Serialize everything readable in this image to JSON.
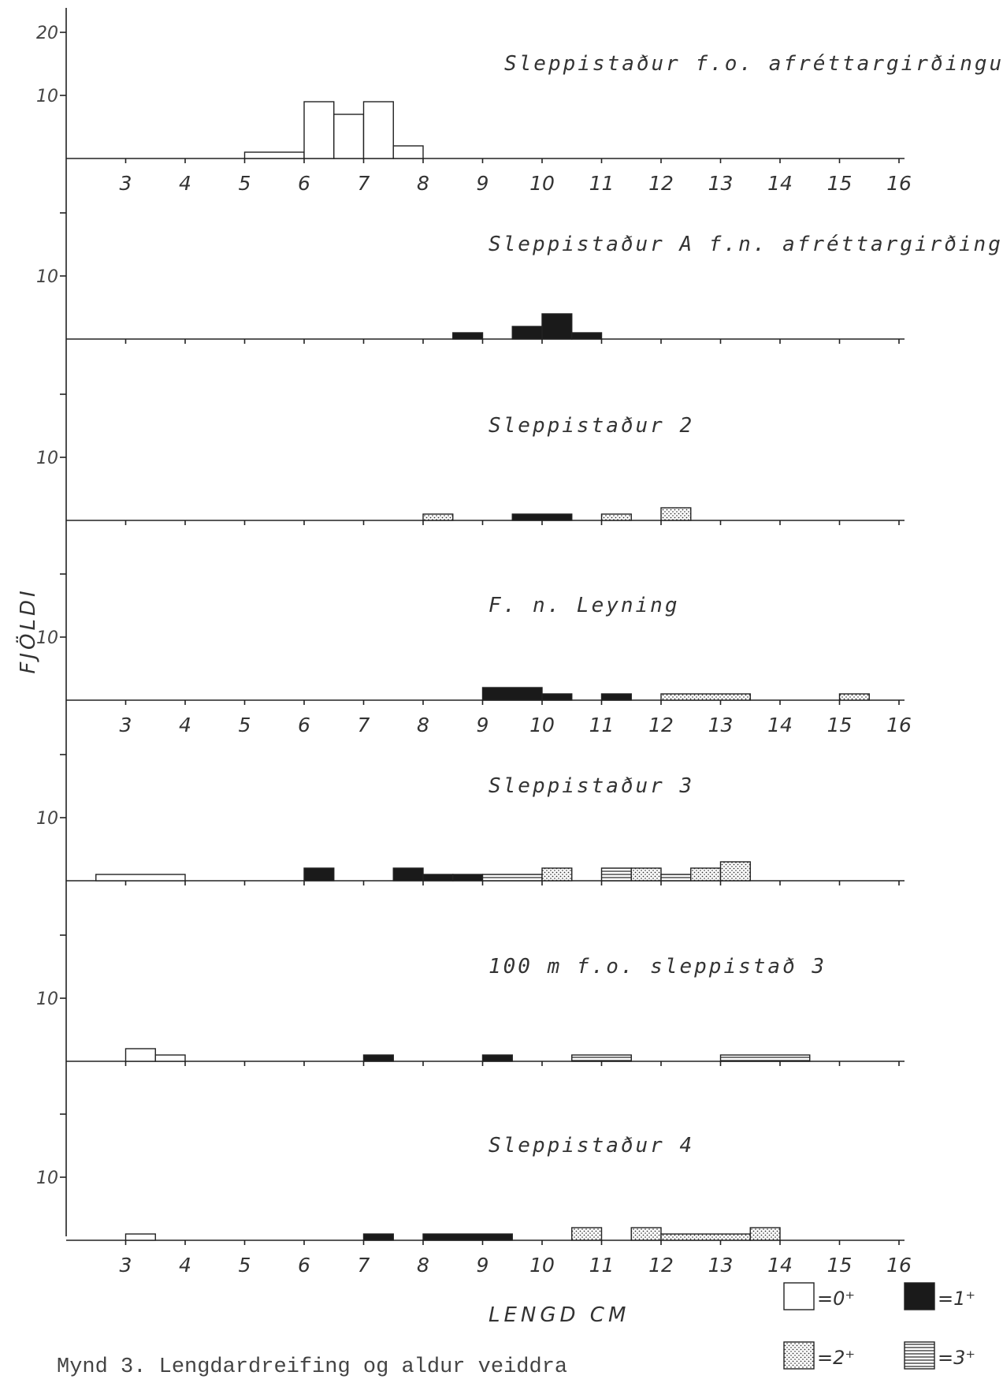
{
  "chart_data": {
    "type": "bar",
    "ylabel": "FJÖLDI",
    "xlabel": "LENGD CM",
    "x_ticks": [
      "3",
      "4",
      "5",
      "6",
      "7",
      "8",
      "9",
      "10",
      "11",
      "12",
      "13",
      "14",
      "15",
      "16"
    ],
    "caption": "Mynd 3. Lengdardreifing og aldur veiddra",
    "age_classes": [
      {
        "key": "0",
        "label": "=0⁺",
        "fill": "white"
      },
      {
        "key": "1",
        "label": "=1⁺",
        "fill": "solid"
      },
      {
        "key": "2",
        "label": "=2⁺",
        "fill": "dots"
      },
      {
        "key": "3",
        "label": "=3⁺",
        "fill": "stripes"
      }
    ],
    "panels": [
      {
        "title": "Sleppistaður f.o. afréttargirðingu",
        "y_ticks": [
          "20",
          "10"
        ],
        "show_x_ticks": true,
        "bars": [
          {
            "x0": 5,
            "x1": 6,
            "age": "0",
            "n": 1
          },
          {
            "x0": 6,
            "x1": 6.5,
            "age": "0",
            "n": 9
          },
          {
            "x0": 6.5,
            "x1": 7,
            "age": "0",
            "n": 7
          },
          {
            "x0": 7,
            "x1": 7.5,
            "age": "0",
            "n": 9
          },
          {
            "x0": 7.5,
            "x1": 8,
            "age": "0",
            "n": 2
          }
        ]
      },
      {
        "title": "Sleppistaður A  f.n. afréttargirðingu",
        "y_ticks": [
          "10"
        ],
        "show_x_ticks": false,
        "bars": [
          {
            "x0": 8.5,
            "x1": 9,
            "age": "1",
            "n": 1
          },
          {
            "x0": 9.5,
            "x1": 10,
            "age": "1",
            "n": 2
          },
          {
            "x0": 10,
            "x1": 10.5,
            "age": "1",
            "n": 4
          },
          {
            "x0": 10.5,
            "x1": 11,
            "age": "1",
            "n": 1
          }
        ]
      },
      {
        "title": "Sleppistaður  2",
        "y_ticks": [
          "10"
        ],
        "show_x_ticks": false,
        "bars": [
          {
            "x0": 8,
            "x1": 8.5,
            "age": "2",
            "n": 1
          },
          {
            "x0": 9.5,
            "x1": 10.5,
            "age": "1",
            "n": 1
          },
          {
            "x0": 11,
            "x1": 11.5,
            "age": "2",
            "n": 1
          },
          {
            "x0": 12,
            "x1": 12.5,
            "age": "2",
            "n": 2
          }
        ]
      },
      {
        "title": "F. n.  Leyning",
        "y_ticks": [
          "10"
        ],
        "show_x_ticks": true,
        "bars": [
          {
            "x0": 9,
            "x1": 10,
            "age": "1",
            "n": 2
          },
          {
            "x0": 10,
            "x1": 10.5,
            "age": "1",
            "n": 1
          },
          {
            "x0": 11,
            "x1": 11.5,
            "age": "1",
            "n": 1
          },
          {
            "x0": 12,
            "x1": 13.5,
            "age": "2",
            "n": 1
          },
          {
            "x0": 15,
            "x1": 15.5,
            "age": "2",
            "n": 1
          }
        ]
      },
      {
        "title": "Sleppistaður  3",
        "y_ticks": [
          "10"
        ],
        "show_x_ticks": false,
        "bars": [
          {
            "x0": 2.5,
            "x1": 4,
            "age": "0",
            "n": 1
          },
          {
            "x0": 6,
            "x1": 6.5,
            "age": "1",
            "n": 2
          },
          {
            "x0": 7.5,
            "x1": 8,
            "age": "1",
            "n": 2
          },
          {
            "x0": 8,
            "x1": 8.5,
            "age": "1",
            "n": 1
          },
          {
            "x0": 8.5,
            "x1": 9,
            "age": "1",
            "n": 1
          },
          {
            "x0": 9,
            "x1": 10,
            "age": "3",
            "n": 1
          },
          {
            "x0": 10,
            "x1": 10.5,
            "age": "2",
            "n": 2
          },
          {
            "x0": 11,
            "x1": 11.5,
            "age": "3",
            "n": 2
          },
          {
            "x0": 11.5,
            "x1": 12,
            "age": "2",
            "n": 2
          },
          {
            "x0": 12,
            "x1": 12.5,
            "age": "3",
            "n": 1
          },
          {
            "x0": 12.5,
            "x1": 13,
            "age": "2",
            "n": 2
          },
          {
            "x0": 13,
            "x1": 13.5,
            "age": "2",
            "n": 3
          }
        ]
      },
      {
        "title": "100  m  f.o.  sleppistað  3",
        "y_ticks": [
          "10"
        ],
        "show_x_ticks": false,
        "bars": [
          {
            "x0": 3,
            "x1": 3.5,
            "age": "0",
            "n": 2
          },
          {
            "x0": 3.5,
            "x1": 4,
            "age": "0",
            "n": 1
          },
          {
            "x0": 7,
            "x1": 7.5,
            "age": "1",
            "n": 1
          },
          {
            "x0": 9,
            "x1": 9.5,
            "age": "1",
            "n": 1
          },
          {
            "x0": 10.5,
            "x1": 11.5,
            "age": "3",
            "n": 1
          },
          {
            "x0": 13,
            "x1": 14.5,
            "age": "3",
            "n": 1
          }
        ]
      },
      {
        "title": "Sleppistaður  4",
        "y_ticks": [
          "10"
        ],
        "show_x_ticks": true,
        "bars": [
          {
            "x0": 3,
            "x1": 3.5,
            "age": "0",
            "n": 1
          },
          {
            "x0": 7,
            "x1": 7.5,
            "age": "1",
            "n": 1
          },
          {
            "x0": 8,
            "x1": 9.5,
            "age": "1",
            "n": 1
          },
          {
            "x0": 10.5,
            "x1": 11,
            "age": "2",
            "n": 2
          },
          {
            "x0": 11.5,
            "x1": 12,
            "age": "2",
            "n": 2
          },
          {
            "x0": 12,
            "x1": 13.5,
            "age": "2",
            "n": 1
          },
          {
            "x0": 13.5,
            "x1": 14,
            "age": "2",
            "n": 2
          }
        ]
      }
    ]
  }
}
